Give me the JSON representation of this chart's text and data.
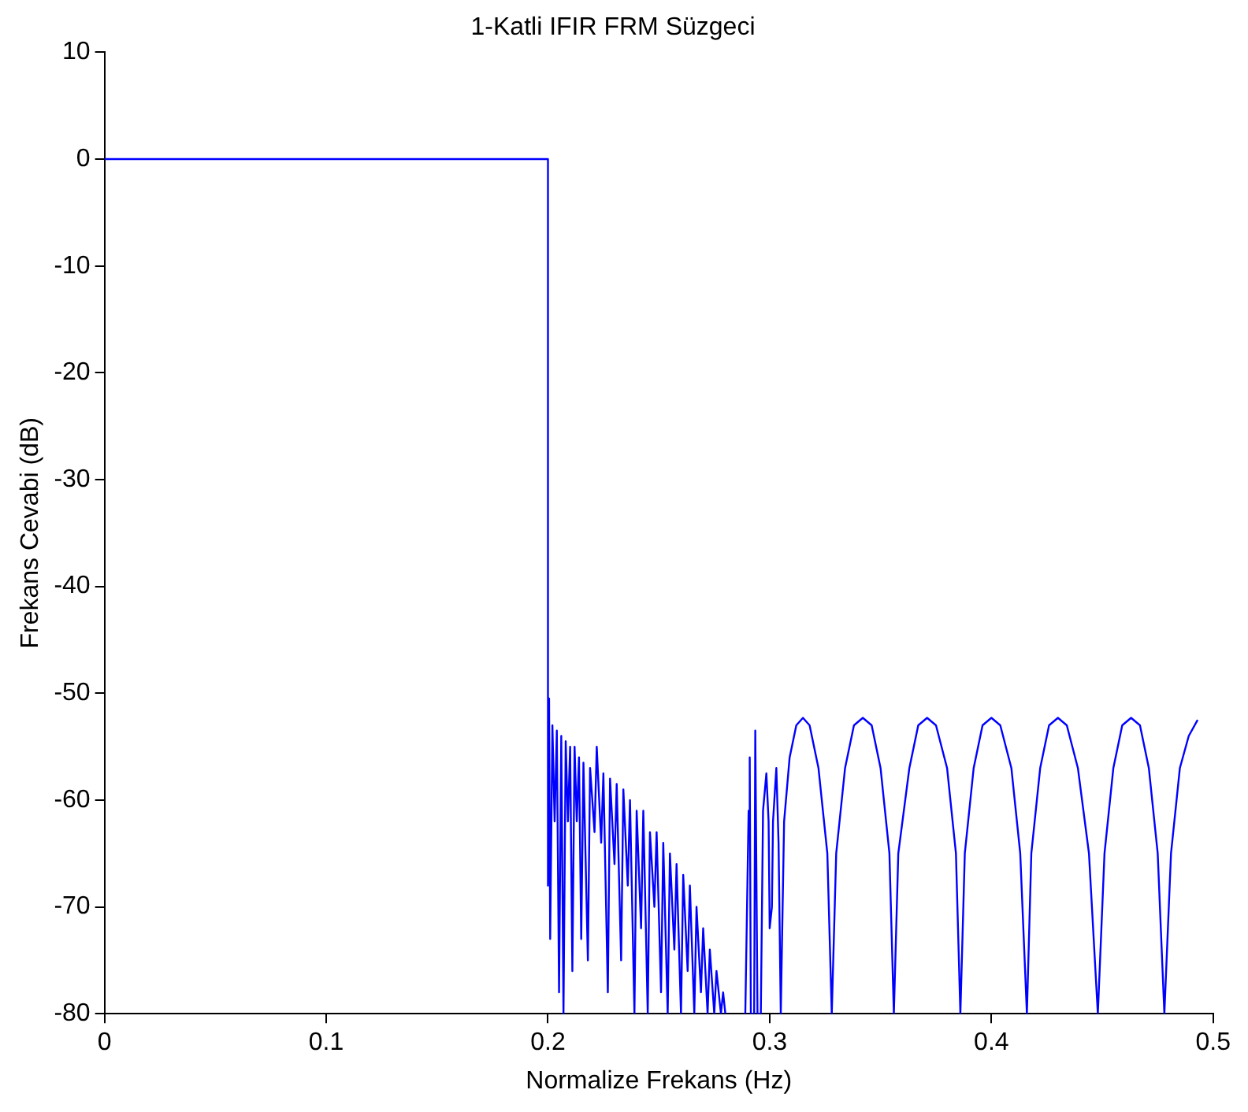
{
  "chart_data": {
    "type": "line",
    "title": "1-Katli IFIR FRM Süzgeci",
    "xlabel": "Normalize Frekans (Hz)",
    "ylabel": "Frekans Cevabi (dB)",
    "xlim": [
      0,
      0.5
    ],
    "xticks": [
      0,
      0.1,
      0.2,
      0.3,
      0.4,
      0.5
    ],
    "ylim": [
      -80,
      10
    ],
    "yticks": [
      -80,
      -70,
      -60,
      -50,
      -40,
      -30,
      -20,
      -10,
      0,
      10
    ],
    "grid": false,
    "legend": false,
    "marker": "none",
    "line_style": "solid",
    "series": [
      {
        "color": "#0000ff",
        "x": [
          0,
          0.2,
          0.2,
          0.2005,
          0.201,
          0.202,
          0.203,
          0.204,
          0.205,
          0.206,
          0.207,
          0.208,
          0.209,
          0.21,
          0.211,
          0.212,
          0.213,
          0.214,
          0.215,
          0.216,
          0.218,
          0.219,
          0.221,
          0.222,
          0.224,
          0.225,
          0.227,
          0.228,
          0.23,
          0.231,
          0.233,
          0.234,
          0.236,
          0.237,
          0.239,
          0.24,
          0.242,
          0.243,
          0.245,
          0.246,
          0.248,
          0.249,
          0.251,
          0.252,
          0.254,
          0.255,
          0.257,
          0.258,
          0.26,
          0.261,
          0.263,
          0.264,
          0.266,
          0.267,
          0.269,
          0.27,
          0.272,
          0.273,
          0.275,
          0.276,
          0.278,
          0.279,
          0.28,
          0.285,
          0.289,
          0.2905,
          0.291,
          0.2915,
          0.293,
          0.2935,
          0.2945,
          0.296,
          0.297,
          0.2985,
          0.2995,
          0.3,
          0.301,
          0.3015,
          0.303,
          0.304,
          0.305,
          0.3065,
          0.309,
          0.312,
          0.315,
          0.318,
          0.322,
          0.326,
          0.328,
          0.33,
          0.334,
          0.338,
          0.342,
          0.346,
          0.35,
          0.354,
          0.356,
          0.358,
          0.363,
          0.367,
          0.371,
          0.375,
          0.38,
          0.384,
          0.386,
          0.388,
          0.392,
          0.396,
          0.4,
          0.404,
          0.409,
          0.413,
          0.416,
          0.418,
          0.422,
          0.426,
          0.43,
          0.434,
          0.439,
          0.444,
          0.448,
          0.451,
          0.455,
          0.459,
          0.463,
          0.467,
          0.471,
          0.475,
          0.478,
          0.481,
          0.485,
          0.489,
          0.493
        ],
        "values": [
          0,
          0,
          -68,
          -50.5,
          -73,
          -53,
          -62,
          -53.5,
          -78,
          -54,
          -80,
          -54.5,
          -62,
          -55,
          -76,
          -55,
          -62,
          -56,
          -73,
          -56.5,
          -75,
          -57,
          -63,
          -55,
          -64,
          -57.5,
          -78,
          -58,
          -66,
          -58.5,
          -75,
          -59,
          -68,
          -60,
          -80,
          -61,
          -72,
          -61,
          -80,
          -63,
          -70,
          -63,
          -78,
          -64,
          -80,
          -65,
          -74,
          -66,
          -80,
          -67,
          -76,
          -68,
          -80,
          -70,
          -78,
          -72,
          -80,
          -74,
          -80,
          -76,
          -80,
          -78,
          -80,
          null,
          -80,
          -61,
          -56,
          -80,
          -80,
          -53.5,
          -80,
          -80,
          -61,
          -57.5,
          -62,
          -72,
          -70,
          -62,
          -57,
          -64,
          -80,
          -62,
          -56,
          -53,
          -52.3,
          -53,
          -57,
          -65,
          -80,
          -65,
          -57,
          -53,
          -52.3,
          -53,
          -57,
          -65,
          -80,
          -65,
          -57,
          -53,
          -52.3,
          -53,
          -57,
          -65,
          -80,
          -65,
          -57,
          -53,
          -52.3,
          -53,
          -57,
          -65,
          -80,
          -65,
          -57,
          -53,
          -52.3,
          -53,
          -57,
          -65,
          -80,
          -65,
          -57,
          -53,
          -52.3,
          -53,
          -57,
          -65,
          -80,
          -65,
          -57,
          -54,
          -52.5
        ]
      }
    ]
  }
}
